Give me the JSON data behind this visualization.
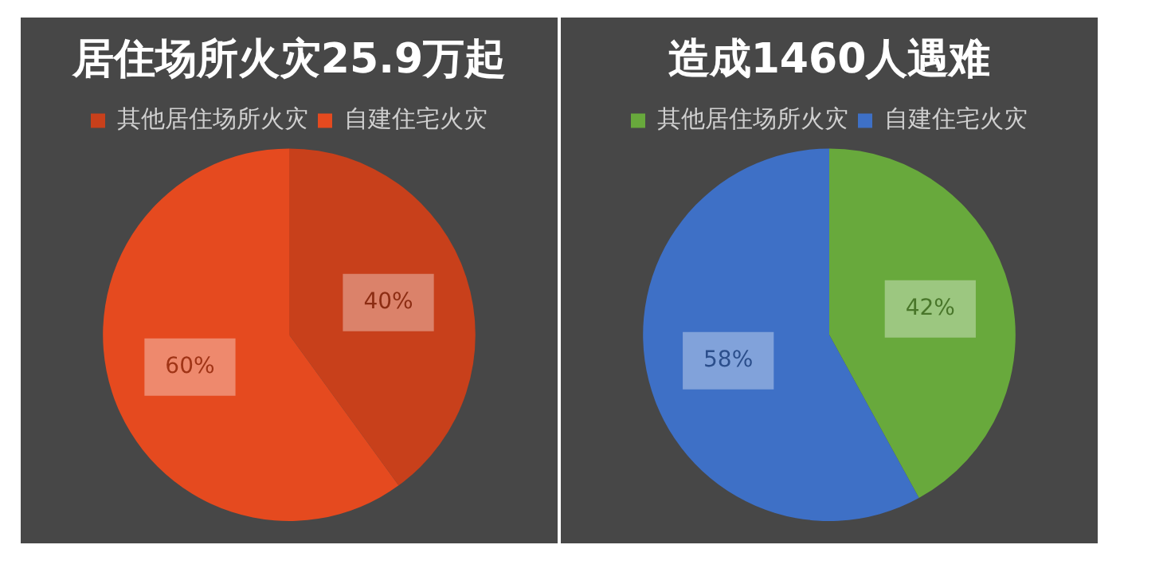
{
  "chart_data": [
    {
      "type": "pie",
      "title": "居住场所火灾25.9万起",
      "categories": [
        "其他居住场所火灾",
        "自建住宅火灾"
      ],
      "values": [
        40,
        60
      ],
      "colors": [
        "#c8401b",
        "#e54a1f"
      ],
      "value_labels": [
        "40%",
        "60%"
      ],
      "legend": "top"
    },
    {
      "type": "pie",
      "title": "造成1460人遇难",
      "categories": [
        "其他居住场所火灾",
        "自建住宅火灾"
      ],
      "values": [
        42,
        58
      ],
      "colors": [
        "#68a93c",
        "#3e70c6"
      ],
      "value_labels": [
        "42%",
        "58%"
      ],
      "legend": "top"
    }
  ]
}
